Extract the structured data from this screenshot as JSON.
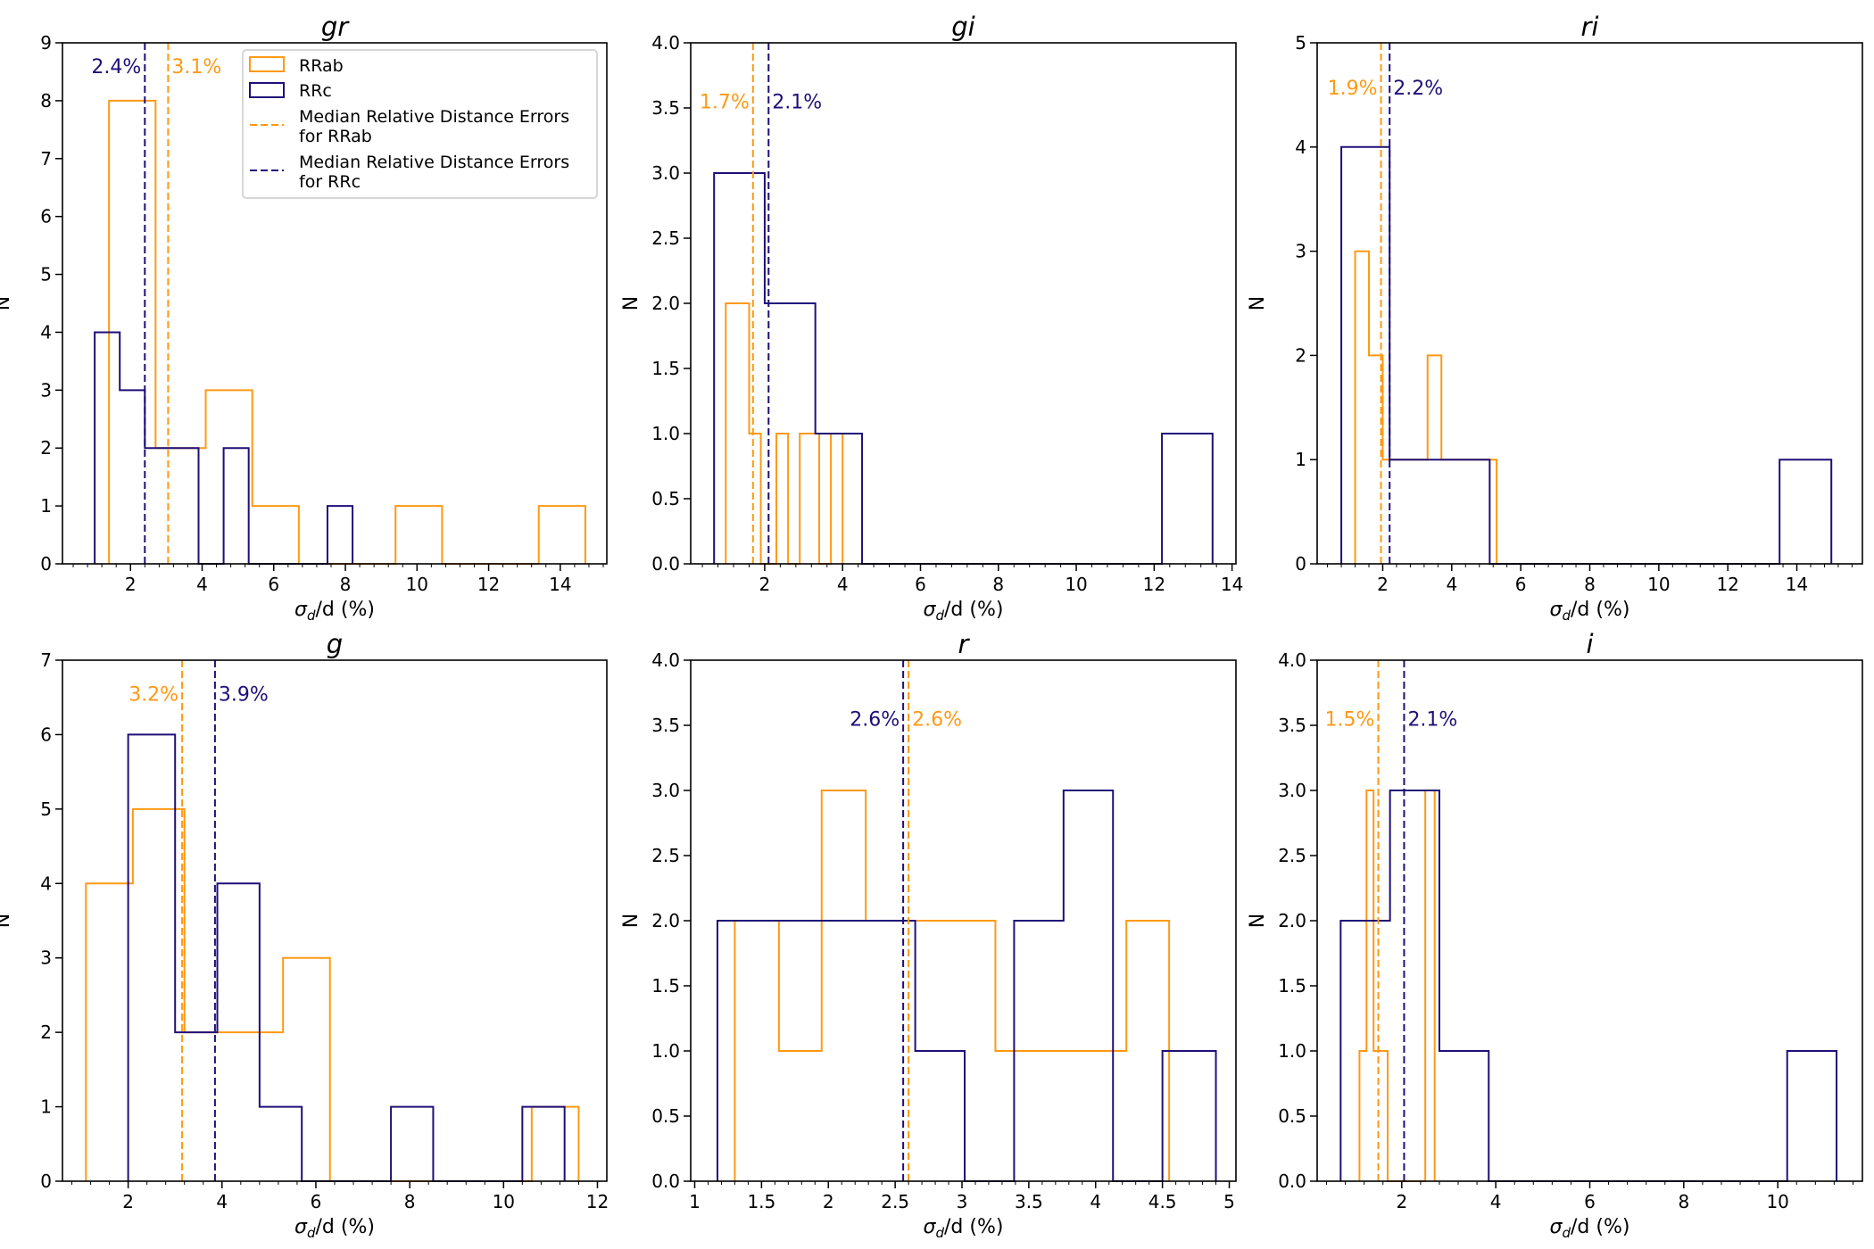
{
  "colors": {
    "rrab": "#ff9914",
    "rrc": "#1f0f78",
    "axis": "#000000"
  },
  "figure": {
    "xlabel_text": "σ",
    "xlabel_sub": "d",
    "xlabel_rest": "/d (%)",
    "ylabel": "N"
  },
  "legend": {
    "rrab_label": "RRab",
    "rrc_label": "RRc",
    "median_rrab_line1": "Median Relative Distance Errors",
    "median_rrab_line2": "for RRab",
    "median_rrc_line1": "Median Relative Distance Errors",
    "median_rrc_line2": "for RRc"
  },
  "chart_data": [
    {
      "type": "histogram-step",
      "title": "gr",
      "xlim": [
        0.1,
        15.3
      ],
      "ylim": [
        0,
        9
      ],
      "xticks": [
        2,
        4,
        6,
        8,
        10,
        12,
        14
      ],
      "xtick_labels": [
        "2",
        "4",
        "6",
        "8",
        "10",
        "12",
        "14"
      ],
      "yticks": [
        0,
        1,
        2,
        3,
        4,
        5,
        6,
        7,
        8,
        9
      ],
      "ytick_labels": [
        "0",
        "1",
        "2",
        "3",
        "4",
        "5",
        "6",
        "7",
        "8",
        "9"
      ],
      "has_legend": true,
      "series": [
        {
          "name": "RRab",
          "edges": [
            1.4,
            2.7,
            4.1,
            5.4,
            6.7,
            8.1,
            9.4,
            10.7,
            12.1,
            13.4,
            14.7
          ],
          "counts": [
            8,
            2,
            3,
            1,
            0,
            0,
            1,
            0,
            0,
            1
          ]
        },
        {
          "name": "RRc",
          "edges": [
            1.0,
            1.7,
            2.4,
            3.1,
            3.9,
            4.6,
            5.3,
            6.0,
            6.7,
            7.5,
            8.2
          ],
          "counts": [
            4,
            3,
            2,
            2,
            0,
            2,
            0,
            0,
            0,
            1
          ]
        }
      ],
      "medians": [
        {
          "series": "RRc",
          "value": 2.4,
          "label": "2.4%",
          "label_side": "left",
          "label_y": 8.6
        },
        {
          "series": "RRab",
          "value": 3.05,
          "label": "3.1%",
          "label_side": "right",
          "label_y": 8.6
        }
      ]
    },
    {
      "type": "histogram-step",
      "title": "gi",
      "xlim": [
        0.1,
        14.1
      ],
      "ylim": [
        0,
        4
      ],
      "xticks": [
        2,
        4,
        6,
        8,
        10,
        12,
        14
      ],
      "xtick_labels": [
        "2",
        "4",
        "6",
        "8",
        "10",
        "12",
        "14"
      ],
      "yticks": [
        0,
        0.5,
        1,
        1.5,
        2,
        2.5,
        3,
        3.5,
        4
      ],
      "ytick_labels": [
        "0.0",
        "0.5",
        "1.0",
        "1.5",
        "2.0",
        "2.5",
        "3.0",
        "3.5",
        "4.0"
      ],
      "has_legend": false,
      "series": [
        {
          "name": "RRab",
          "edges": [
            1.0,
            1.6,
            1.9,
            2.3,
            2.6,
            2.9,
            3.2,
            3.4,
            3.7,
            4.0
          ],
          "counts": [
            2,
            1,
            0,
            1,
            0,
            1,
            1,
            0,
            1
          ]
        },
        {
          "name": "RRc",
          "edges": [
            0.7,
            2.0,
            3.3,
            4.5,
            5.8,
            7.1,
            8.3,
            9.6,
            10.9,
            12.2,
            13.5
          ],
          "counts": [
            3,
            2,
            1,
            0,
            0,
            0,
            0,
            0,
            0,
            1
          ]
        }
      ],
      "medians": [
        {
          "series": "RRab",
          "value": 1.7,
          "label": "1.7%",
          "label_side": "left",
          "label_y": 3.55
        },
        {
          "series": "RRc",
          "value": 2.1,
          "label": "2.1%",
          "label_side": "right",
          "label_y": 3.55
        }
      ]
    },
    {
      "type": "histogram-step",
      "title": "ri",
      "xlim": [
        0.1,
        15.9
      ],
      "ylim": [
        0,
        5
      ],
      "xticks": [
        2,
        4,
        6,
        8,
        10,
        12,
        14
      ],
      "xtick_labels": [
        "2",
        "4",
        "6",
        "8",
        "10",
        "12",
        "14"
      ],
      "yticks": [
        0,
        1,
        2,
        3,
        4,
        5
      ],
      "ytick_labels": [
        "0",
        "1",
        "2",
        "3",
        "4",
        "5"
      ],
      "has_legend": false,
      "series": [
        {
          "name": "RRab",
          "edges": [
            1.2,
            1.6,
            2.0,
            2.4,
            2.8,
            3.3,
            3.7,
            4.1,
            4.5,
            4.9,
            5.3
          ],
          "counts": [
            3,
            2,
            1,
            1,
            1,
            2,
            1,
            1,
            1,
            1
          ]
        },
        {
          "name": "RRc",
          "edges": [
            0.8,
            2.2,
            3.7,
            5.1,
            6.6,
            8.1,
            9.5,
            11.0,
            12.1,
            13.5,
            15.0
          ],
          "counts": [
            4,
            1,
            1,
            0,
            0,
            0,
            0,
            0,
            0,
            1
          ]
        }
      ],
      "medians": [
        {
          "series": "RRab",
          "value": 1.95,
          "label": "1.9%",
          "label_side": "left",
          "label_y": 4.57
        },
        {
          "series": "RRc",
          "value": 2.2,
          "label": "2.2%",
          "label_side": "right",
          "label_y": 4.57
        }
      ]
    },
    {
      "type": "histogram-step",
      "title": "g",
      "xlim": [
        0.6,
        12.2
      ],
      "ylim": [
        0,
        7
      ],
      "xticks": [
        2,
        4,
        6,
        8,
        10,
        12
      ],
      "xtick_labels": [
        "2",
        "4",
        "6",
        "8",
        "10",
        "12"
      ],
      "yticks": [
        0,
        1,
        2,
        3,
        4,
        5,
        6,
        7
      ],
      "ytick_labels": [
        "0",
        "1",
        "2",
        "3",
        "4",
        "5",
        "6",
        "7"
      ],
      "has_legend": false,
      "series": [
        {
          "name": "RRab",
          "edges": [
            1.1,
            2.1,
            3.2,
            4.2,
            5.3,
            6.3,
            7.4,
            8.5,
            9.5,
            10.6,
            11.6
          ],
          "counts": [
            4,
            5,
            2,
            2,
            3,
            0,
            0,
            0,
            0,
            1
          ]
        },
        {
          "name": "RRc",
          "edges": [
            2.0,
            3.0,
            3.9,
            4.8,
            5.7,
            6.6,
            7.6,
            8.5,
            9.4,
            10.4,
            11.3
          ],
          "counts": [
            6,
            2,
            4,
            1,
            0,
            0,
            1,
            0,
            0,
            1
          ]
        }
      ],
      "medians": [
        {
          "series": "RRab",
          "value": 3.15,
          "label": "3.2%",
          "label_side": "left",
          "label_y": 6.55
        },
        {
          "series": "RRc",
          "value": 3.85,
          "label": "3.9%",
          "label_side": "right",
          "label_y": 6.55
        }
      ]
    },
    {
      "type": "histogram-step",
      "title": "r",
      "xlim": [
        0.97,
        5.05
      ],
      "ylim": [
        0,
        4
      ],
      "xticks": [
        1,
        1.5,
        2,
        2.5,
        3,
        3.5,
        4,
        4.5,
        5
      ],
      "xtick_labels": [
        "1",
        "1.5",
        "2",
        "2.5",
        "3",
        "3.5",
        "4",
        "4.5",
        "5"
      ],
      "yticks": [
        0,
        0.5,
        1,
        1.5,
        2,
        2.5,
        3,
        3.5,
        4
      ],
      "ytick_labels": [
        "0.0",
        "0.5",
        "1.0",
        "1.5",
        "2.0",
        "2.5",
        "3.0",
        "3.5",
        "4.0"
      ],
      "has_legend": false,
      "series": [
        {
          "name": "RRab",
          "edges": [
            1.3,
            1.63,
            1.95,
            2.28,
            2.6,
            2.93,
            3.25,
            3.58,
            3.9,
            4.23,
            4.55
          ],
          "counts": [
            2,
            1,
            3,
            2,
            2,
            2,
            1,
            1,
            1,
            2
          ]
        },
        {
          "name": "RRc",
          "edges": [
            1.17,
            1.54,
            1.91,
            2.28,
            2.65,
            3.02,
            3.39,
            3.76,
            4.13,
            4.5,
            4.9
          ],
          "counts": [
            2,
            2,
            2,
            2,
            1,
            0,
            2,
            3,
            0,
            1
          ]
        }
      ],
      "medians": [
        {
          "series": "RRc",
          "value": 2.56,
          "label": "2.6%",
          "label_side": "left",
          "label_y": 3.55
        },
        {
          "series": "RRab",
          "value": 2.6,
          "label": "2.6%",
          "label_side": "right",
          "label_y": 3.55
        }
      ]
    },
    {
      "type": "histogram-step",
      "title": "i",
      "xlim": [
        0.2,
        11.8
      ],
      "ylim": [
        0,
        4
      ],
      "xticks": [
        2,
        4,
        6,
        8,
        10
      ],
      "xtick_labels": [
        "2",
        "4",
        "6",
        "8",
        "10"
      ],
      "yticks": [
        0,
        0.5,
        1,
        1.5,
        2,
        2.5,
        3,
        3.5,
        4
      ],
      "ytick_labels": [
        "0.0",
        "0.5",
        "1.0",
        "1.5",
        "2.0",
        "2.5",
        "3.0",
        "3.5",
        "4.0"
      ],
      "has_legend": false,
      "series": [
        {
          "name": "RRab",
          "edges": [
            1.1,
            1.25,
            1.4,
            1.55,
            1.7,
            1.85,
            2.0,
            2.15,
            2.3,
            2.5,
            2.7
          ],
          "counts": [
            1,
            3,
            1,
            1,
            0,
            0,
            0,
            0,
            0,
            3
          ]
        },
        {
          "name": "RRc",
          "edges": [
            0.7,
            1.75,
            2.8,
            3.85,
            4.9,
            5.95,
            7.0,
            8.1,
            9.15,
            10.2,
            11.25
          ],
          "counts": [
            2,
            3,
            1,
            0,
            0,
            0,
            0,
            0,
            0,
            1
          ]
        }
      ],
      "medians": [
        {
          "series": "RRab",
          "value": 1.5,
          "label": "1.5%",
          "label_side": "left",
          "label_y": 3.55
        },
        {
          "series": "RRc",
          "value": 2.05,
          "label": "2.1%",
          "label_side": "right",
          "label_y": 3.55
        }
      ]
    }
  ]
}
